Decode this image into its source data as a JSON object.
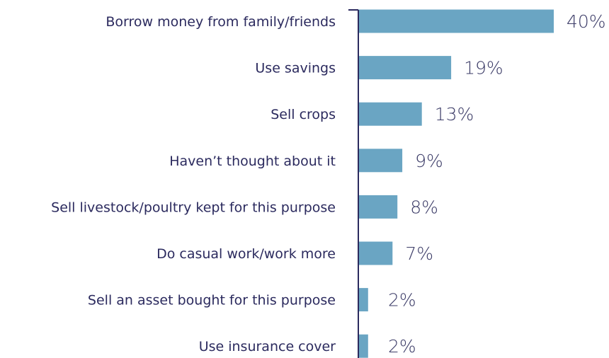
{
  "chart_data": {
    "type": "bar",
    "orientation": "horizontal",
    "categories": [
      "Borrow money from family/friends",
      "Use savings",
      "Sell crops",
      "Haven’t thought about it",
      "Sell livestock/poultry kept for this purpose",
      "Do casual work/work more",
      "Sell an asset bought for this purpose",
      "Use insurance cover"
    ],
    "values": [
      40,
      19,
      13,
      9,
      8,
      7,
      2,
      2
    ],
    "value_labels": [
      "40%",
      "19%",
      "13%",
      "9%",
      "8%",
      "7%",
      "2%",
      "2%"
    ],
    "unit": "%",
    "xlim": [
      0,
      40
    ],
    "grid": false,
    "legend": "none",
    "colors": {
      "bar": "#6aa5c3",
      "axis": "#2b2a5e",
      "category_text": "#2b2a5e",
      "value_text": "#3a3a66"
    }
  }
}
